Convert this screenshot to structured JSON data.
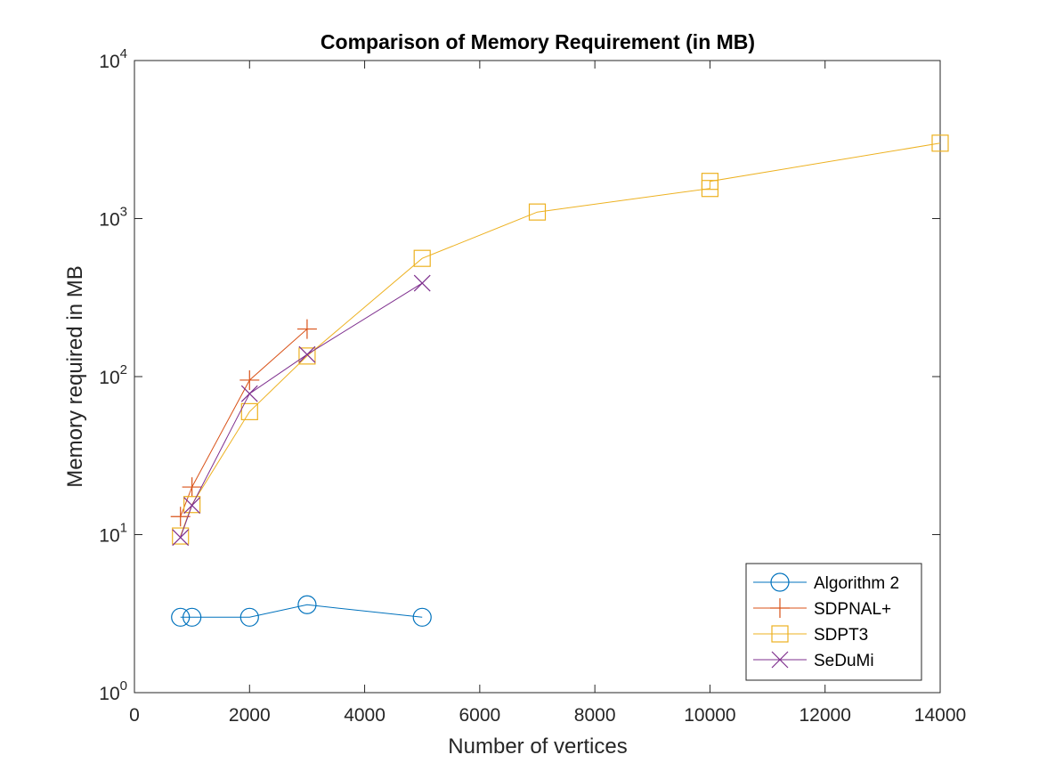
{
  "chart_data": {
    "type": "line",
    "title": "Comparison of Memory Requirement (in MB)",
    "xlabel": "Number of vertices",
    "ylabel": "Memory required in MB",
    "xlim": [
      0,
      14000
    ],
    "ylim": [
      1,
      10000
    ],
    "yscale": "log",
    "xticks": [
      0,
      2000,
      4000,
      6000,
      8000,
      10000,
      12000,
      14000
    ],
    "xtick_labels": [
      "0",
      "2000",
      "4000",
      "6000",
      "8000",
      "10000",
      "12000",
      "14000"
    ],
    "yticks": [
      1,
      10,
      100,
      1000,
      10000
    ],
    "ytick_labels": [
      {
        "base": "10",
        "exp": "0"
      },
      {
        "base": "10",
        "exp": "1"
      },
      {
        "base": "10",
        "exp": "2"
      },
      {
        "base": "10",
        "exp": "3"
      },
      {
        "base": "10",
        "exp": "4"
      }
    ],
    "grid": false,
    "legend_position": "bottom-right",
    "series": [
      {
        "name": "Algorithm 2",
        "color": "#0072BD",
        "marker": "circle",
        "x": [
          800,
          1000,
          2000,
          3000,
          5000
        ],
        "y": [
          3.0,
          3.0,
          3.0,
          3.6,
          3.0
        ]
      },
      {
        "name": "SDPNAL+",
        "color": "#D95319",
        "marker": "plus",
        "x": [
          800,
          1000,
          2000,
          3000
        ],
        "y": [
          13,
          20,
          95,
          200
        ]
      },
      {
        "name": "SDPT3",
        "color": "#EDB120",
        "marker": "square",
        "x": [
          800,
          1000,
          2000,
          3000,
          5000,
          7000,
          10000,
          10000,
          14000
        ],
        "y": [
          9.8,
          15.5,
          60,
          135,
          560,
          1100,
          1550,
          1720,
          3000
        ]
      },
      {
        "name": "SeDuMi",
        "color": "#7E2F8E",
        "marker": "x",
        "x": [
          800,
          1000,
          2000,
          3000,
          5000
        ],
        "y": [
          9.6,
          15.3,
          78,
          138,
          390
        ]
      }
    ]
  }
}
